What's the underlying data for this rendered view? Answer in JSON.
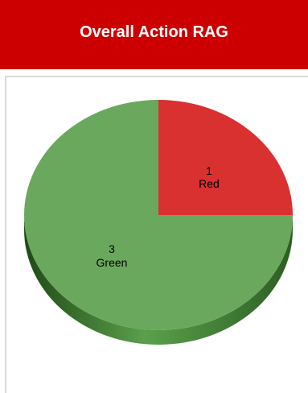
{
  "header": {
    "title": "Overall Action RAG"
  },
  "colors": {
    "header_bg": "#cc0000",
    "red": "#d93030",
    "green": "#6aa85e",
    "green_shadow": "#3f7a2e"
  },
  "chart_data": {
    "type": "pie",
    "title": "Overall Action RAG",
    "style": "3d",
    "slices": [
      {
        "label": "Red",
        "value": 1,
        "color": "#d93030"
      },
      {
        "label": "Green",
        "value": 3,
        "color": "#6aa85e"
      }
    ],
    "data_labels": [
      "1",
      "Red",
      "3",
      "Green"
    ]
  }
}
